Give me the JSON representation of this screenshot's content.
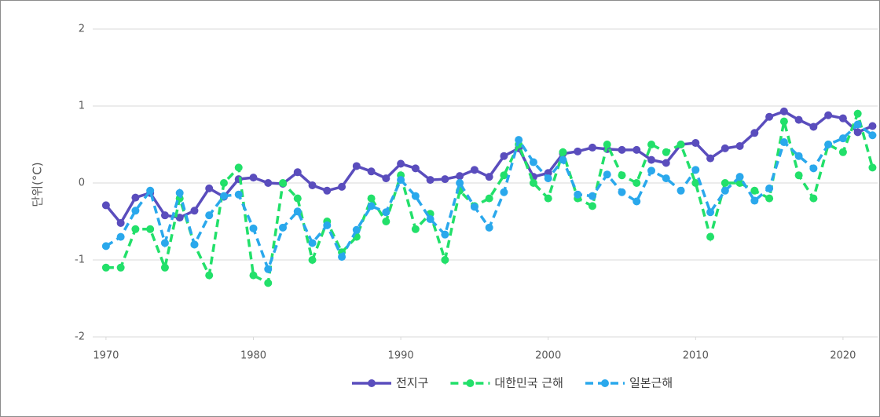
{
  "chart_data": {
    "type": "line",
    "y_label": "단위(°C)",
    "x": [
      1970,
      1971,
      1972,
      1973,
      1974,
      1975,
      1976,
      1977,
      1978,
      1979,
      1980,
      1981,
      1982,
      1983,
      1984,
      1985,
      1986,
      1987,
      1988,
      1989,
      1990,
      1991,
      1992,
      1993,
      1994,
      1995,
      1996,
      1997,
      1998,
      1999,
      2000,
      2001,
      2002,
      2003,
      2004,
      2005,
      2006,
      2007,
      2008,
      2009,
      2010,
      2011,
      2012,
      2013,
      2014,
      2015,
      2016,
      2017,
      2018,
      2019,
      2020,
      2021,
      2022
    ],
    "series": [
      {
        "name": "전지구",
        "color": "#5a4dbd",
        "dashed": false,
        "values": [
          -0.29,
          -0.52,
          -0.19,
          -0.13,
          -0.42,
          -0.45,
          -0.36,
          -0.07,
          -0.18,
          0.05,
          0.07,
          0.0,
          -0.01,
          0.14,
          -0.03,
          -0.1,
          -0.05,
          0.22,
          0.15,
          0.06,
          0.25,
          0.19,
          0.04,
          0.05,
          0.09,
          0.17,
          0.08,
          0.35,
          0.45,
          0.08,
          0.13,
          0.38,
          0.41,
          0.46,
          0.44,
          0.43,
          0.43,
          0.3,
          0.26,
          0.5,
          0.52,
          0.32,
          0.45,
          0.48,
          0.65,
          0.86,
          0.93,
          0.82,
          0.73,
          0.88,
          0.84,
          0.66,
          0.74
        ]
      },
      {
        "name": "대한민국 근해",
        "color": "#22e06a",
        "dashed": true,
        "values": [
          -1.1,
          -1.1,
          -0.6,
          -0.6,
          -1.1,
          -0.2,
          -0.8,
          -1.2,
          0.0,
          0.2,
          -1.2,
          -1.3,
          0.0,
          -0.2,
          -1.0,
          -0.5,
          -0.9,
          -0.7,
          -0.2,
          -0.5,
          0.1,
          -0.6,
          -0.4,
          -1.0,
          -0.1,
          -0.3,
          -0.2,
          0.1,
          0.5,
          0.0,
          -0.2,
          0.4,
          -0.2,
          -0.3,
          0.5,
          0.1,
          0.0,
          0.5,
          0.4,
          0.5,
          0.0,
          -0.7,
          0.0,
          0.0,
          -0.1,
          -0.2,
          0.8,
          0.1,
          -0.2,
          0.5,
          0.4,
          0.9,
          0.2
        ]
      },
      {
        "name": "일본근해",
        "color": "#2aa8ec",
        "dashed": true,
        "values": [
          -0.82,
          -0.7,
          -0.36,
          -0.1,
          -0.78,
          -0.13,
          -0.8,
          -0.42,
          -0.17,
          -0.15,
          -0.59,
          -1.12,
          -0.58,
          -0.37,
          -0.78,
          -0.55,
          -0.96,
          -0.61,
          -0.3,
          -0.38,
          0.04,
          -0.17,
          -0.47,
          -0.67,
          0.0,
          -0.31,
          -0.58,
          -0.12,
          0.56,
          0.27,
          0.06,
          0.3,
          -0.15,
          -0.17,
          0.11,
          -0.12,
          -0.24,
          0.16,
          0.06,
          -0.1,
          0.17,
          -0.38,
          -0.1,
          0.08,
          -0.23,
          -0.07,
          0.53,
          0.35,
          0.19,
          0.5,
          0.58,
          0.76,
          0.62
        ]
      }
    ],
    "xlim": [
      1969.1,
      2022.35
    ],
    "xticks": [
      1970,
      1980,
      1990,
      2000,
      2010,
      2020
    ],
    "ylim": [
      -2,
      2
    ],
    "yticks": [
      -2,
      -1,
      0,
      1,
      2
    ],
    "grid": true,
    "legend": "bottom"
  }
}
